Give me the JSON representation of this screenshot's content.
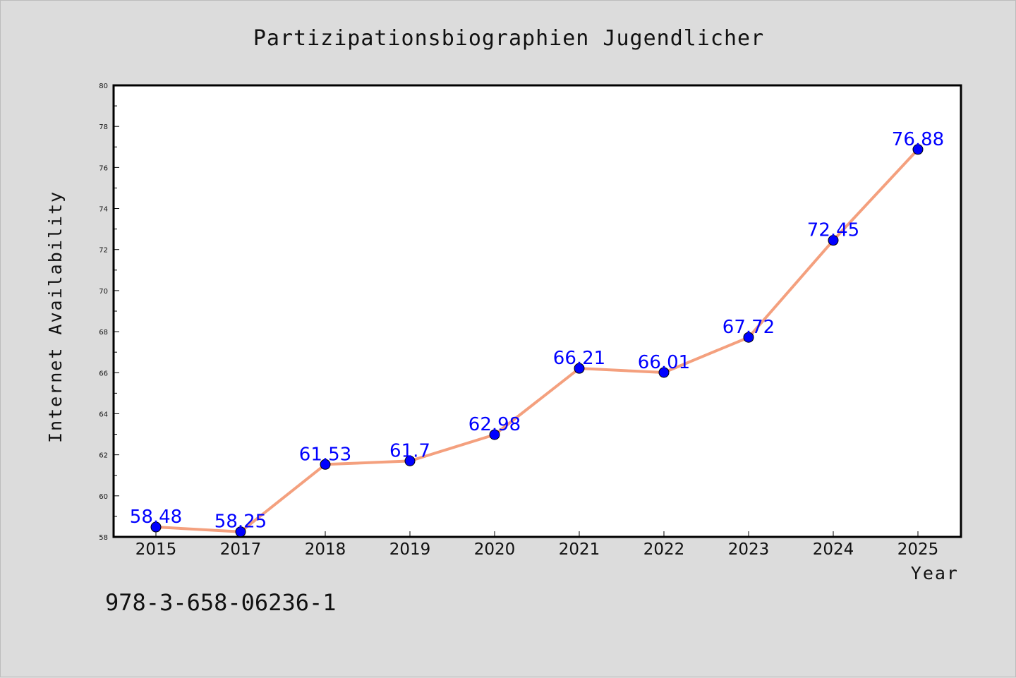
{
  "chart_data": {
    "type": "line",
    "title": "Partizipationsbiographien Jugendlicher",
    "xlabel": "Year",
    "ylabel": "Internet Availability",
    "categories": [
      "2015",
      "2017",
      "2018",
      "2019",
      "2020",
      "2021",
      "2022",
      "2023",
      "2024",
      "2025"
    ],
    "series": [
      {
        "values": [
          58.48,
          58.25,
          61.53,
          61.7,
          62.98,
          66.21,
          66.01,
          67.72,
          72.45,
          76.88
        ],
        "data_labels": [
          "58.48",
          "58.25",
          "61.53",
          "61.7",
          "62.98",
          "66.21",
          "66.01",
          "67.72",
          "72.45",
          "76.88"
        ],
        "line_color": "#f4a07e",
        "marker_color": "#0000ff"
      }
    ],
    "ylim": [
      58,
      80
    ],
    "yticks": [
      "58",
      "60",
      "62",
      "64",
      "66",
      "68",
      "70",
      "72",
      "74",
      "76",
      "78",
      "80"
    ],
    "grid": false,
    "legend": "none"
  },
  "footer": {
    "isbn": "978-3-658-06236-1"
  }
}
